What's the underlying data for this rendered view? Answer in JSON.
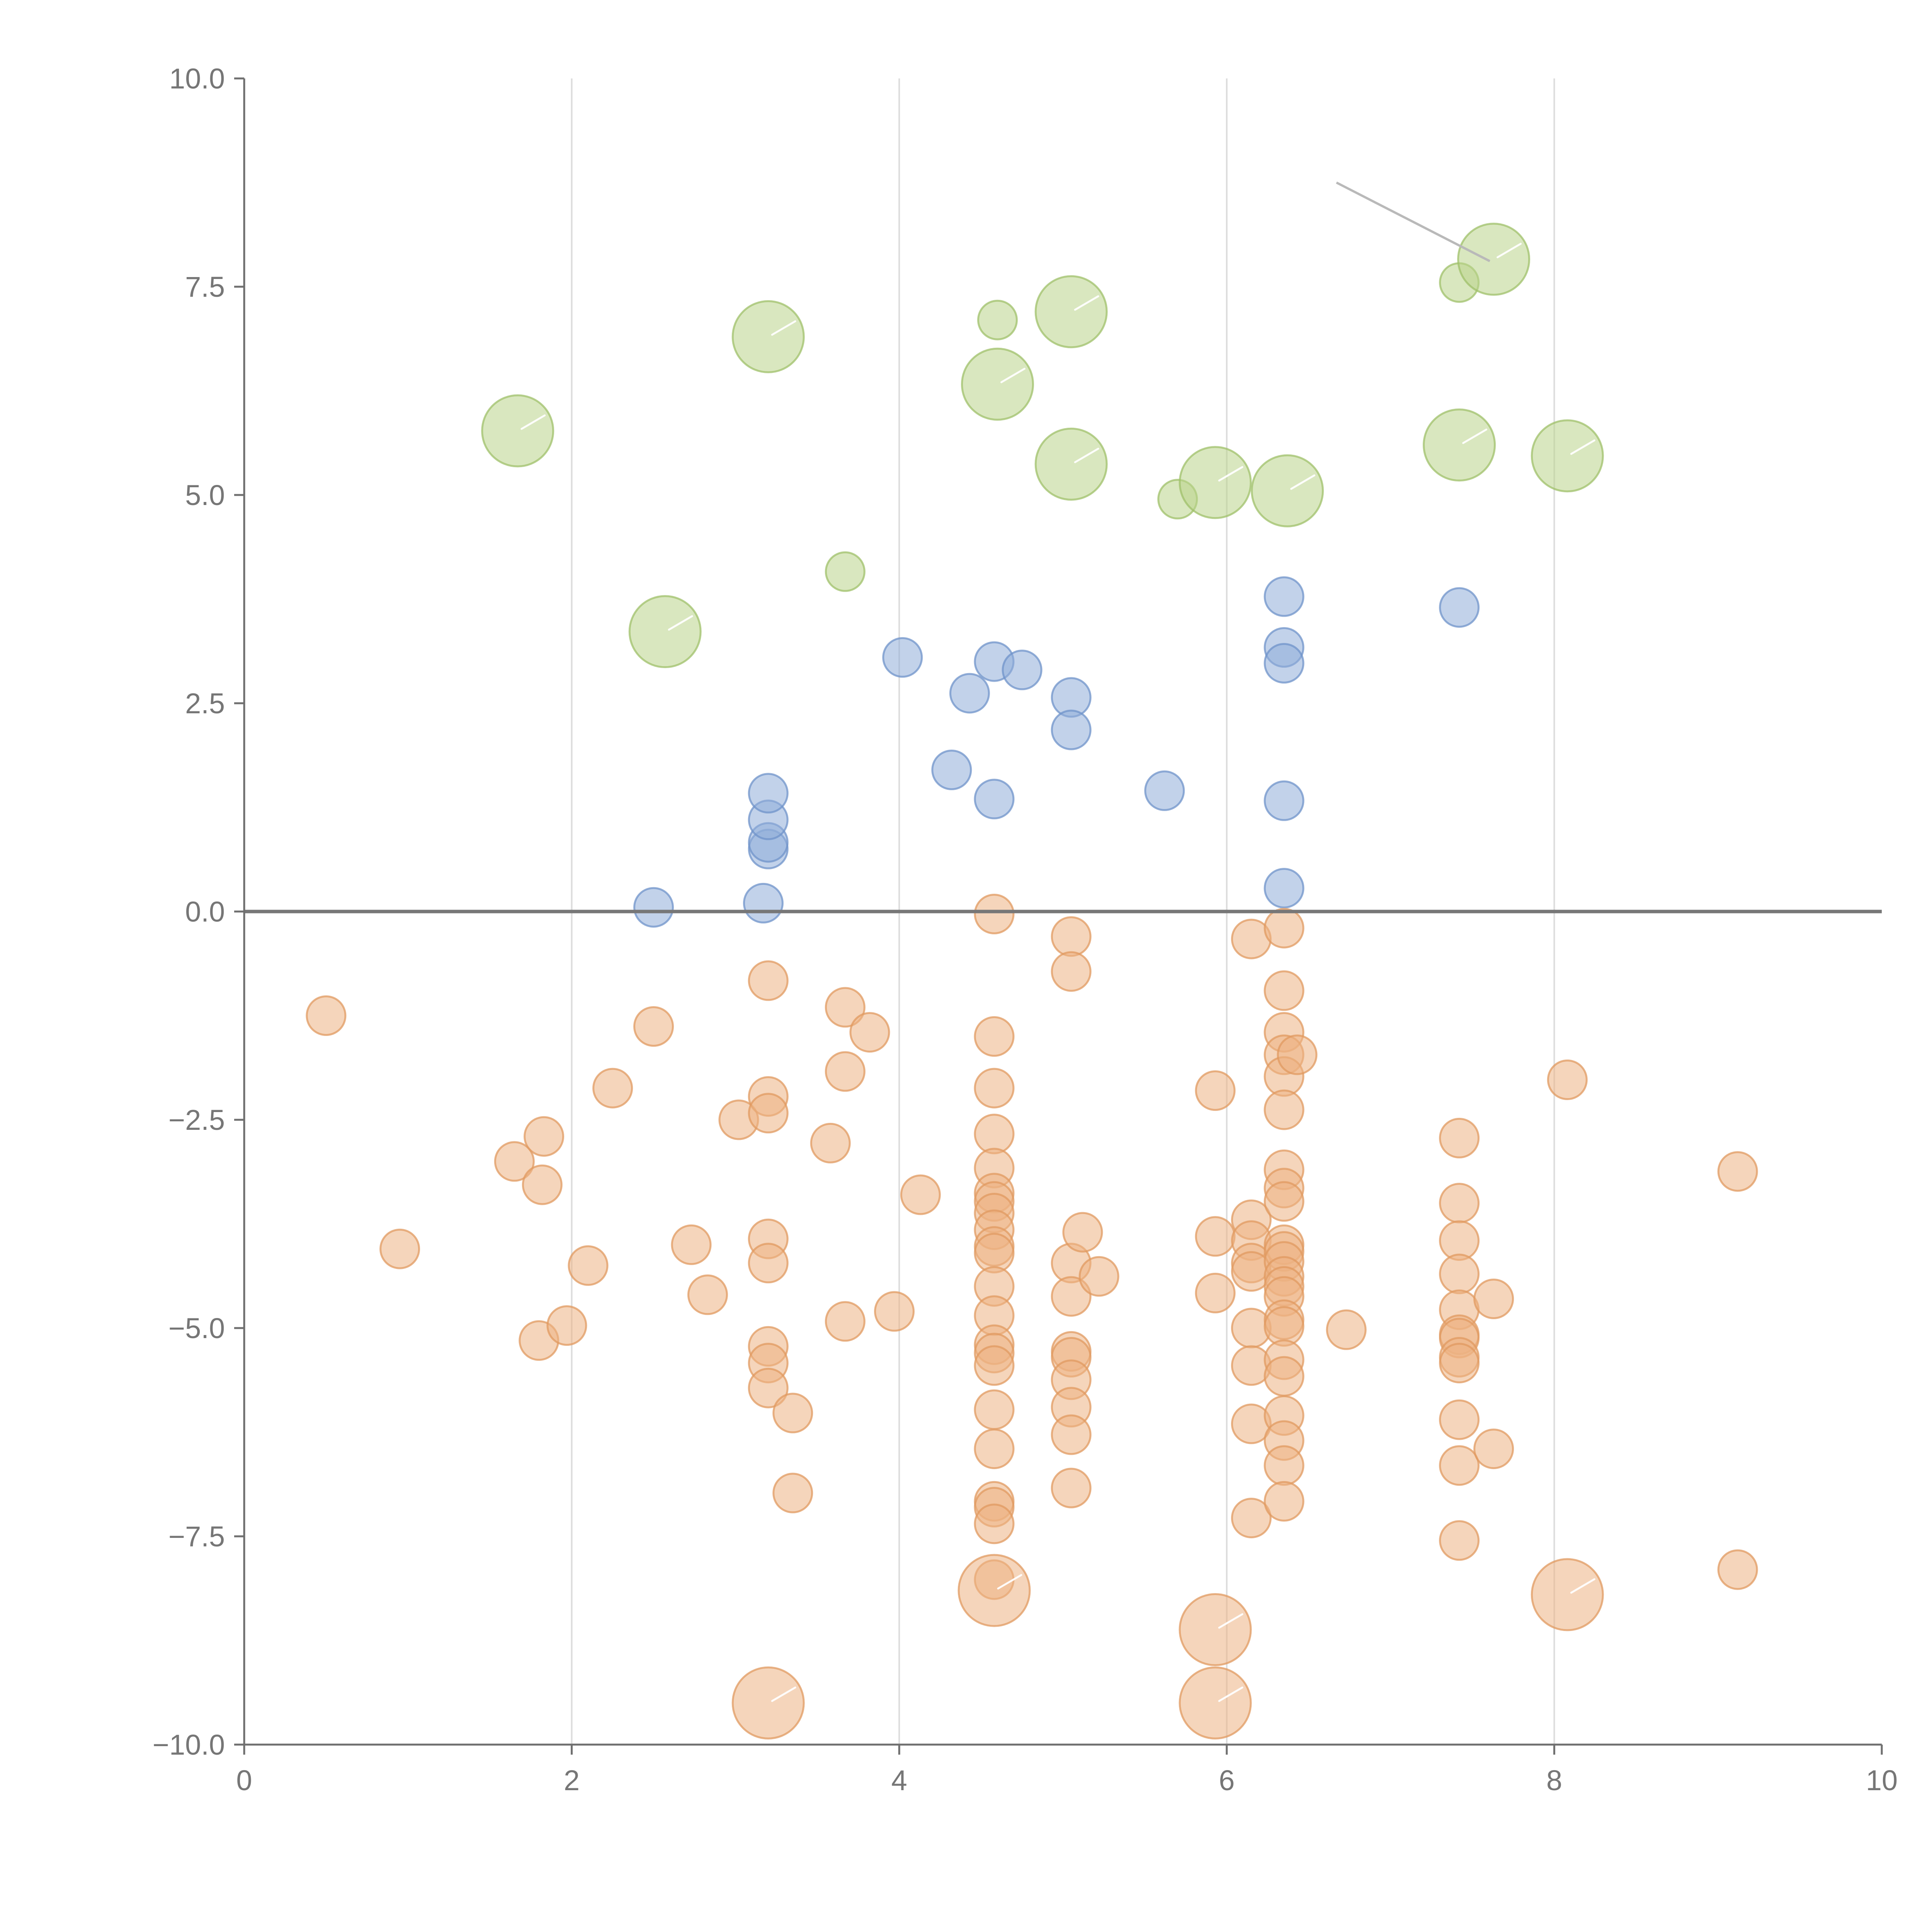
{
  "chart_data": {
    "type": "scatter",
    "variant": "bubble",
    "title": "",
    "xlabel": "",
    "ylabel": "",
    "xlim": [
      0,
      10
    ],
    "ylim": [
      -10,
      10
    ],
    "x_ticks": [
      0,
      2,
      4,
      6,
      8,
      10
    ],
    "x_tick_labels": [
      "0",
      "2",
      "4",
      "6",
      "8",
      "10"
    ],
    "y_ticks": [
      -10,
      -7.5,
      -5,
      -2.5,
      0,
      2.5,
      5,
      7.5,
      10
    ],
    "y_tick_labels": [
      "−10.0",
      "−7.5",
      "−5.0",
      "−2.5",
      "0.0",
      "2.5",
      "5.0",
      "7.5",
      "10.0"
    ],
    "grid": "vertical",
    "reference_line_y": 0,
    "legend": "none",
    "series": [
      {
        "name": "green",
        "color": "#b9d48b",
        "stroke": "#9fc06a",
        "points": [
          [
            1.67,
            5.77,
            2.0
          ],
          [
            2.57,
            3.36,
            2.0
          ],
          [
            3.2,
            6.9,
            2.0
          ],
          [
            3.67,
            4.08,
            1.0
          ],
          [
            4.6,
            7.1,
            1.0
          ],
          [
            4.6,
            6.33,
            2.0
          ],
          [
            5.05,
            7.2,
            2.0
          ],
          [
            5.05,
            5.37,
            2.0
          ],
          [
            5.7,
            4.95,
            1.0
          ],
          [
            5.93,
            5.15,
            2.0
          ],
          [
            6.37,
            5.05,
            2.0
          ],
          [
            7.42,
            5.6,
            2.0
          ],
          [
            7.42,
            7.55,
            1.0
          ],
          [
            7.63,
            7.83,
            2.0
          ],
          [
            8.08,
            5.47,
            2.0
          ]
        ]
      },
      {
        "name": "blue",
        "color": "#8fadd9",
        "stroke": "#6f93c9",
        "points": [
          [
            2.5,
            0.05,
            1.0
          ],
          [
            3.17,
            0.1,
            1.0
          ],
          [
            3.2,
            0.75,
            1.0
          ],
          [
            3.2,
            0.83,
            1.0
          ],
          [
            3.2,
            1.1,
            1.0
          ],
          [
            3.2,
            1.42,
            1.0
          ],
          [
            4.02,
            3.05,
            1.0
          ],
          [
            4.32,
            1.7,
            1.0
          ],
          [
            4.43,
            2.62,
            1.0
          ],
          [
            4.58,
            3.0,
            1.0
          ],
          [
            4.58,
            1.35,
            1.0
          ],
          [
            4.75,
            2.9,
            1.0
          ],
          [
            5.05,
            2.57,
            1.0
          ],
          [
            5.05,
            2.18,
            1.0
          ],
          [
            5.62,
            1.45,
            1.0
          ],
          [
            6.35,
            3.78,
            1.0
          ],
          [
            6.35,
            3.17,
            1.0
          ],
          [
            6.35,
            2.98,
            1.0
          ],
          [
            6.35,
            1.33,
            1.0
          ],
          [
            6.35,
            0.28,
            1.0
          ],
          [
            7.42,
            3.65,
            1.0
          ]
        ]
      },
      {
        "name": "orange",
        "color": "#ecb384",
        "stroke": "#e09a60",
        "points": [
          [
            0.5,
            -1.25,
            1.0
          ],
          [
            0.95,
            -4.05,
            1.0
          ],
          [
            1.65,
            -3.0,
            1.0
          ],
          [
            1.8,
            -5.15,
            1.0
          ],
          [
            1.82,
            -3.28,
            1.0
          ],
          [
            1.83,
            -2.7,
            1.0
          ],
          [
            1.97,
            -4.97,
            1.0
          ],
          [
            2.1,
            -4.25,
            1.0
          ],
          [
            2.25,
            -2.12,
            1.0
          ],
          [
            2.5,
            -1.38,
            1.0
          ],
          [
            2.73,
            -4.0,
            1.0
          ],
          [
            2.83,
            -4.6,
            1.0
          ],
          [
            3.02,
            -2.5,
            1.0
          ],
          [
            3.2,
            -0.83,
            1.0
          ],
          [
            3.2,
            -2.22,
            1.0
          ],
          [
            3.2,
            -2.42,
            1.0
          ],
          [
            3.2,
            -3.93,
            1.0
          ],
          [
            3.2,
            -4.22,
            1.0
          ],
          [
            3.2,
            -5.22,
            1.0
          ],
          [
            3.2,
            -5.42,
            1.0
          ],
          [
            3.2,
            -5.72,
            1.0
          ],
          [
            3.35,
            -6.02,
            1.0
          ],
          [
            3.35,
            -6.98,
            1.0
          ],
          [
            3.2,
            -9.5,
            2.0
          ],
          [
            3.58,
            -2.78,
            1.0
          ],
          [
            3.67,
            -1.15,
            1.0
          ],
          [
            3.67,
            -1.92,
            1.0
          ],
          [
            3.67,
            -4.92,
            1.0
          ],
          [
            3.82,
            -1.45,
            1.0
          ],
          [
            3.97,
            -4.8,
            1.0
          ],
          [
            4.13,
            -3.4,
            1.0
          ],
          [
            4.58,
            -0.03,
            1.0
          ],
          [
            4.58,
            -1.5,
            1.0
          ],
          [
            4.58,
            -2.12,
            1.0
          ],
          [
            4.58,
            -2.67,
            1.0
          ],
          [
            4.58,
            -3.08,
            1.0
          ],
          [
            4.58,
            -3.38,
            1.0
          ],
          [
            4.58,
            -3.48,
            1.0
          ],
          [
            4.58,
            -3.62,
            1.0
          ],
          [
            4.58,
            -3.82,
            1.0
          ],
          [
            4.58,
            -4.02,
            1.0
          ],
          [
            4.58,
            -4.1,
            1.0
          ],
          [
            4.58,
            -4.5,
            1.0
          ],
          [
            4.58,
            -4.85,
            1.0
          ],
          [
            4.58,
            -5.2,
            1.0
          ],
          [
            4.58,
            -5.3,
            1.0
          ],
          [
            4.58,
            -5.45,
            1.0
          ],
          [
            4.58,
            -5.98,
            1.0
          ],
          [
            4.58,
            -6.45,
            1.0
          ],
          [
            4.58,
            -7.08,
            1.0
          ],
          [
            4.58,
            -7.15,
            1.0
          ],
          [
            4.58,
            -7.35,
            1.0
          ],
          [
            4.58,
            -8.02,
            1.0
          ],
          [
            4.58,
            -8.15,
            2.0
          ],
          [
            5.05,
            -0.3,
            1.0
          ],
          [
            5.05,
            -0.72,
            1.0
          ],
          [
            5.05,
            -4.22,
            1.0
          ],
          [
            5.05,
            -4.62,
            1.0
          ],
          [
            5.05,
            -5.28,
            1.0
          ],
          [
            5.05,
            -5.35,
            1.0
          ],
          [
            5.05,
            -5.62,
            1.0
          ],
          [
            5.05,
            -5.95,
            1.0
          ],
          [
            5.05,
            -6.28,
            1.0
          ],
          [
            5.05,
            -6.92,
            1.0
          ],
          [
            5.12,
            -3.85,
            1.0
          ],
          [
            5.22,
            -4.38,
            1.0
          ],
          [
            5.93,
            -2.15,
            1.0
          ],
          [
            5.93,
            -3.9,
            1.0
          ],
          [
            5.93,
            -4.58,
            1.0
          ],
          [
            5.93,
            -8.62,
            2.0
          ],
          [
            5.93,
            -9.5,
            2.0
          ],
          [
            6.15,
            -0.33,
            1.0
          ],
          [
            6.15,
            -3.7,
            1.0
          ],
          [
            6.15,
            -3.95,
            1.0
          ],
          [
            6.15,
            -4.22,
            1.0
          ],
          [
            6.15,
            -4.32,
            1.0
          ],
          [
            6.15,
            -5.0,
            1.0
          ],
          [
            6.15,
            -5.45,
            1.0
          ],
          [
            6.15,
            -6.15,
            1.0
          ],
          [
            6.15,
            -7.28,
            1.0
          ],
          [
            6.35,
            -0.2,
            1.0
          ],
          [
            6.35,
            -0.95,
            1.0
          ],
          [
            6.35,
            -1.45,
            1.0
          ],
          [
            6.35,
            -1.72,
            1.0
          ],
          [
            6.35,
            -1.98,
            1.0
          ],
          [
            6.35,
            -2.38,
            1.0
          ],
          [
            6.35,
            -3.1,
            1.0
          ],
          [
            6.35,
            -3.32,
            1.0
          ],
          [
            6.35,
            -3.48,
            1.0
          ],
          [
            6.35,
            -4.0,
            1.0
          ],
          [
            6.35,
            -4.08,
            1.0
          ],
          [
            6.35,
            -4.2,
            1.0
          ],
          [
            6.35,
            -4.38,
            1.0
          ],
          [
            6.35,
            -4.5,
            1.0
          ],
          [
            6.35,
            -4.62,
            1.0
          ],
          [
            6.35,
            -4.9,
            1.0
          ],
          [
            6.35,
            -4.98,
            1.0
          ],
          [
            6.35,
            -5.38,
            1.0
          ],
          [
            6.35,
            -5.58,
            1.0
          ],
          [
            6.35,
            -6.05,
            1.0
          ],
          [
            6.35,
            -6.35,
            1.0
          ],
          [
            6.35,
            -6.65,
            1.0
          ],
          [
            6.35,
            -7.08,
            1.0
          ],
          [
            6.43,
            -1.72,
            1.0
          ],
          [
            6.73,
            -5.02,
            1.0
          ],
          [
            7.42,
            -2.72,
            1.0
          ],
          [
            7.42,
            -3.5,
            1.0
          ],
          [
            7.42,
            -3.95,
            1.0
          ],
          [
            7.42,
            -4.35,
            1.0
          ],
          [
            7.42,
            -4.78,
            1.0
          ],
          [
            7.42,
            -5.08,
            1.0
          ],
          [
            7.42,
            -5.12,
            1.0
          ],
          [
            7.42,
            -5.35,
            1.0
          ],
          [
            7.42,
            -5.42,
            1.0
          ],
          [
            7.42,
            -6.1,
            1.0
          ],
          [
            7.42,
            -6.65,
            1.0
          ],
          [
            7.42,
            -7.55,
            1.0
          ],
          [
            7.63,
            -4.65,
            1.0
          ],
          [
            7.63,
            -6.45,
            1.0
          ],
          [
            8.08,
            -2.02,
            1.0
          ],
          [
            8.08,
            -8.2,
            2.0
          ],
          [
            9.12,
            -3.12,
            1.0
          ],
          [
            9.12,
            -7.9,
            1.0
          ]
        ]
      }
    ]
  }
}
